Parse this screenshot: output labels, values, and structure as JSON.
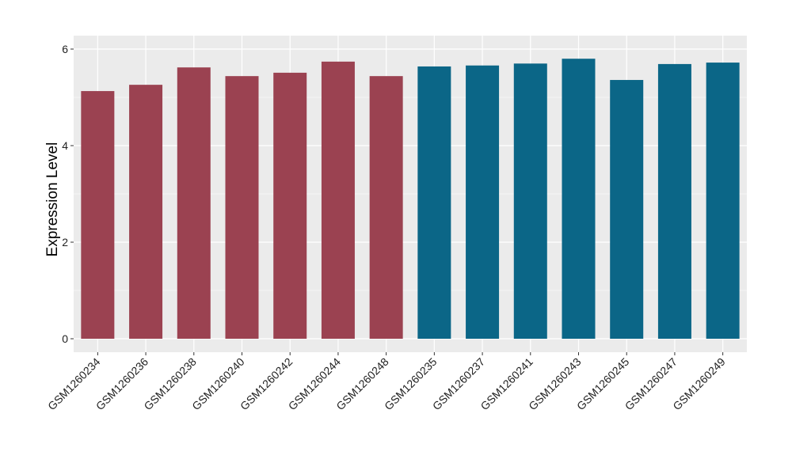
{
  "chart_data": {
    "type": "bar",
    "title": "",
    "xlabel": "",
    "ylabel": "Expression Level",
    "ylim": [
      0,
      6
    ],
    "yticks": [
      "0",
      "2",
      "4",
      "6"
    ],
    "grid": true,
    "legend": "none",
    "categories": [
      "GSM1260234",
      "GSM1260236",
      "GSM1260238",
      "GSM1260240",
      "GSM1260242",
      "GSM1260244",
      "GSM1260248",
      "GSM1260235",
      "GSM1260237",
      "GSM1260241",
      "GSM1260243",
      "GSM1260245",
      "GSM1260247",
      "GSM1260249"
    ],
    "values": [
      5.13,
      5.26,
      5.62,
      5.44,
      5.51,
      5.74,
      5.44,
      5.64,
      5.66,
      5.7,
      5.8,
      5.36,
      5.69,
      5.72
    ],
    "group_colors": [
      "#9b4251",
      "#9b4251",
      "#9b4251",
      "#9b4251",
      "#9b4251",
      "#9b4251",
      "#9b4251",
      "#0b6687",
      "#0b6687",
      "#0b6687",
      "#0b6687",
      "#0b6687",
      "#0b6687",
      "#0b6687"
    ],
    "panel_background": "#ebebeb"
  }
}
